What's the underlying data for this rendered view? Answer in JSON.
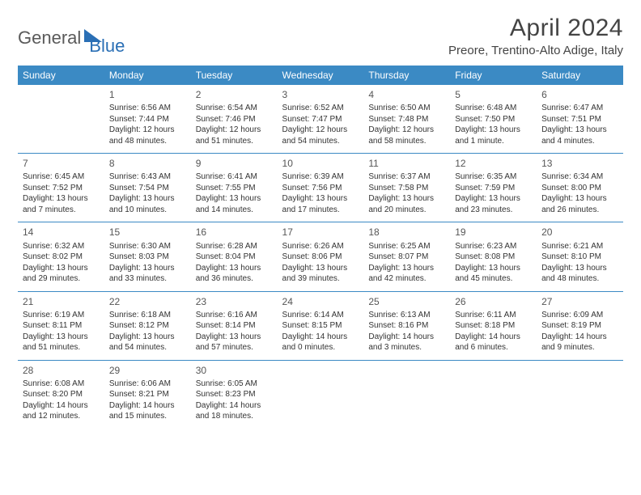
{
  "logo": {
    "word1": "General",
    "word2": "Blue"
  },
  "title": "April 2024",
  "location": "Preore, Trentino-Alto Adige, Italy",
  "colors": {
    "header_bg": "#3b8ac4",
    "header_text": "#ffffff",
    "rule": "#3b8ac4",
    "body_text": "#333333",
    "logo_gray": "#5a5a5a",
    "logo_blue": "#2a6fb5",
    "page_bg": "#ffffff"
  },
  "daynames": [
    "Sunday",
    "Monday",
    "Tuesday",
    "Wednesday",
    "Thursday",
    "Friday",
    "Saturday"
  ],
  "weeks": [
    [
      {
        "n": "",
        "sr": "",
        "ss": "",
        "dl": ""
      },
      {
        "n": "1",
        "sr": "6:56 AM",
        "ss": "7:44 PM",
        "dl": "12 hours and 48 minutes."
      },
      {
        "n": "2",
        "sr": "6:54 AM",
        "ss": "7:46 PM",
        "dl": "12 hours and 51 minutes."
      },
      {
        "n": "3",
        "sr": "6:52 AM",
        "ss": "7:47 PM",
        "dl": "12 hours and 54 minutes."
      },
      {
        "n": "4",
        "sr": "6:50 AM",
        "ss": "7:48 PM",
        "dl": "12 hours and 58 minutes."
      },
      {
        "n": "5",
        "sr": "6:48 AM",
        "ss": "7:50 PM",
        "dl": "13 hours and 1 minute."
      },
      {
        "n": "6",
        "sr": "6:47 AM",
        "ss": "7:51 PM",
        "dl": "13 hours and 4 minutes."
      }
    ],
    [
      {
        "n": "7",
        "sr": "6:45 AM",
        "ss": "7:52 PM",
        "dl": "13 hours and 7 minutes."
      },
      {
        "n": "8",
        "sr": "6:43 AM",
        "ss": "7:54 PM",
        "dl": "13 hours and 10 minutes."
      },
      {
        "n": "9",
        "sr": "6:41 AM",
        "ss": "7:55 PM",
        "dl": "13 hours and 14 minutes."
      },
      {
        "n": "10",
        "sr": "6:39 AM",
        "ss": "7:56 PM",
        "dl": "13 hours and 17 minutes."
      },
      {
        "n": "11",
        "sr": "6:37 AM",
        "ss": "7:58 PM",
        "dl": "13 hours and 20 minutes."
      },
      {
        "n": "12",
        "sr": "6:35 AM",
        "ss": "7:59 PM",
        "dl": "13 hours and 23 minutes."
      },
      {
        "n": "13",
        "sr": "6:34 AM",
        "ss": "8:00 PM",
        "dl": "13 hours and 26 minutes."
      }
    ],
    [
      {
        "n": "14",
        "sr": "6:32 AM",
        "ss": "8:02 PM",
        "dl": "13 hours and 29 minutes."
      },
      {
        "n": "15",
        "sr": "6:30 AM",
        "ss": "8:03 PM",
        "dl": "13 hours and 33 minutes."
      },
      {
        "n": "16",
        "sr": "6:28 AM",
        "ss": "8:04 PM",
        "dl": "13 hours and 36 minutes."
      },
      {
        "n": "17",
        "sr": "6:26 AM",
        "ss": "8:06 PM",
        "dl": "13 hours and 39 minutes."
      },
      {
        "n": "18",
        "sr": "6:25 AM",
        "ss": "8:07 PM",
        "dl": "13 hours and 42 minutes."
      },
      {
        "n": "19",
        "sr": "6:23 AM",
        "ss": "8:08 PM",
        "dl": "13 hours and 45 minutes."
      },
      {
        "n": "20",
        "sr": "6:21 AM",
        "ss": "8:10 PM",
        "dl": "13 hours and 48 minutes."
      }
    ],
    [
      {
        "n": "21",
        "sr": "6:19 AM",
        "ss": "8:11 PM",
        "dl": "13 hours and 51 minutes."
      },
      {
        "n": "22",
        "sr": "6:18 AM",
        "ss": "8:12 PM",
        "dl": "13 hours and 54 minutes."
      },
      {
        "n": "23",
        "sr": "6:16 AM",
        "ss": "8:14 PM",
        "dl": "13 hours and 57 minutes."
      },
      {
        "n": "24",
        "sr": "6:14 AM",
        "ss": "8:15 PM",
        "dl": "14 hours and 0 minutes."
      },
      {
        "n": "25",
        "sr": "6:13 AM",
        "ss": "8:16 PM",
        "dl": "14 hours and 3 minutes."
      },
      {
        "n": "26",
        "sr": "6:11 AM",
        "ss": "8:18 PM",
        "dl": "14 hours and 6 minutes."
      },
      {
        "n": "27",
        "sr": "6:09 AM",
        "ss": "8:19 PM",
        "dl": "14 hours and 9 minutes."
      }
    ],
    [
      {
        "n": "28",
        "sr": "6:08 AM",
        "ss": "8:20 PM",
        "dl": "14 hours and 12 minutes."
      },
      {
        "n": "29",
        "sr": "6:06 AM",
        "ss": "8:21 PM",
        "dl": "14 hours and 15 minutes."
      },
      {
        "n": "30",
        "sr": "6:05 AM",
        "ss": "8:23 PM",
        "dl": "14 hours and 18 minutes."
      },
      {
        "n": "",
        "sr": "",
        "ss": "",
        "dl": ""
      },
      {
        "n": "",
        "sr": "",
        "ss": "",
        "dl": ""
      },
      {
        "n": "",
        "sr": "",
        "ss": "",
        "dl": ""
      },
      {
        "n": "",
        "sr": "",
        "ss": "",
        "dl": ""
      }
    ]
  ],
  "labels": {
    "sunrise": "Sunrise:",
    "sunset": "Sunset:",
    "daylight": "Daylight:"
  }
}
